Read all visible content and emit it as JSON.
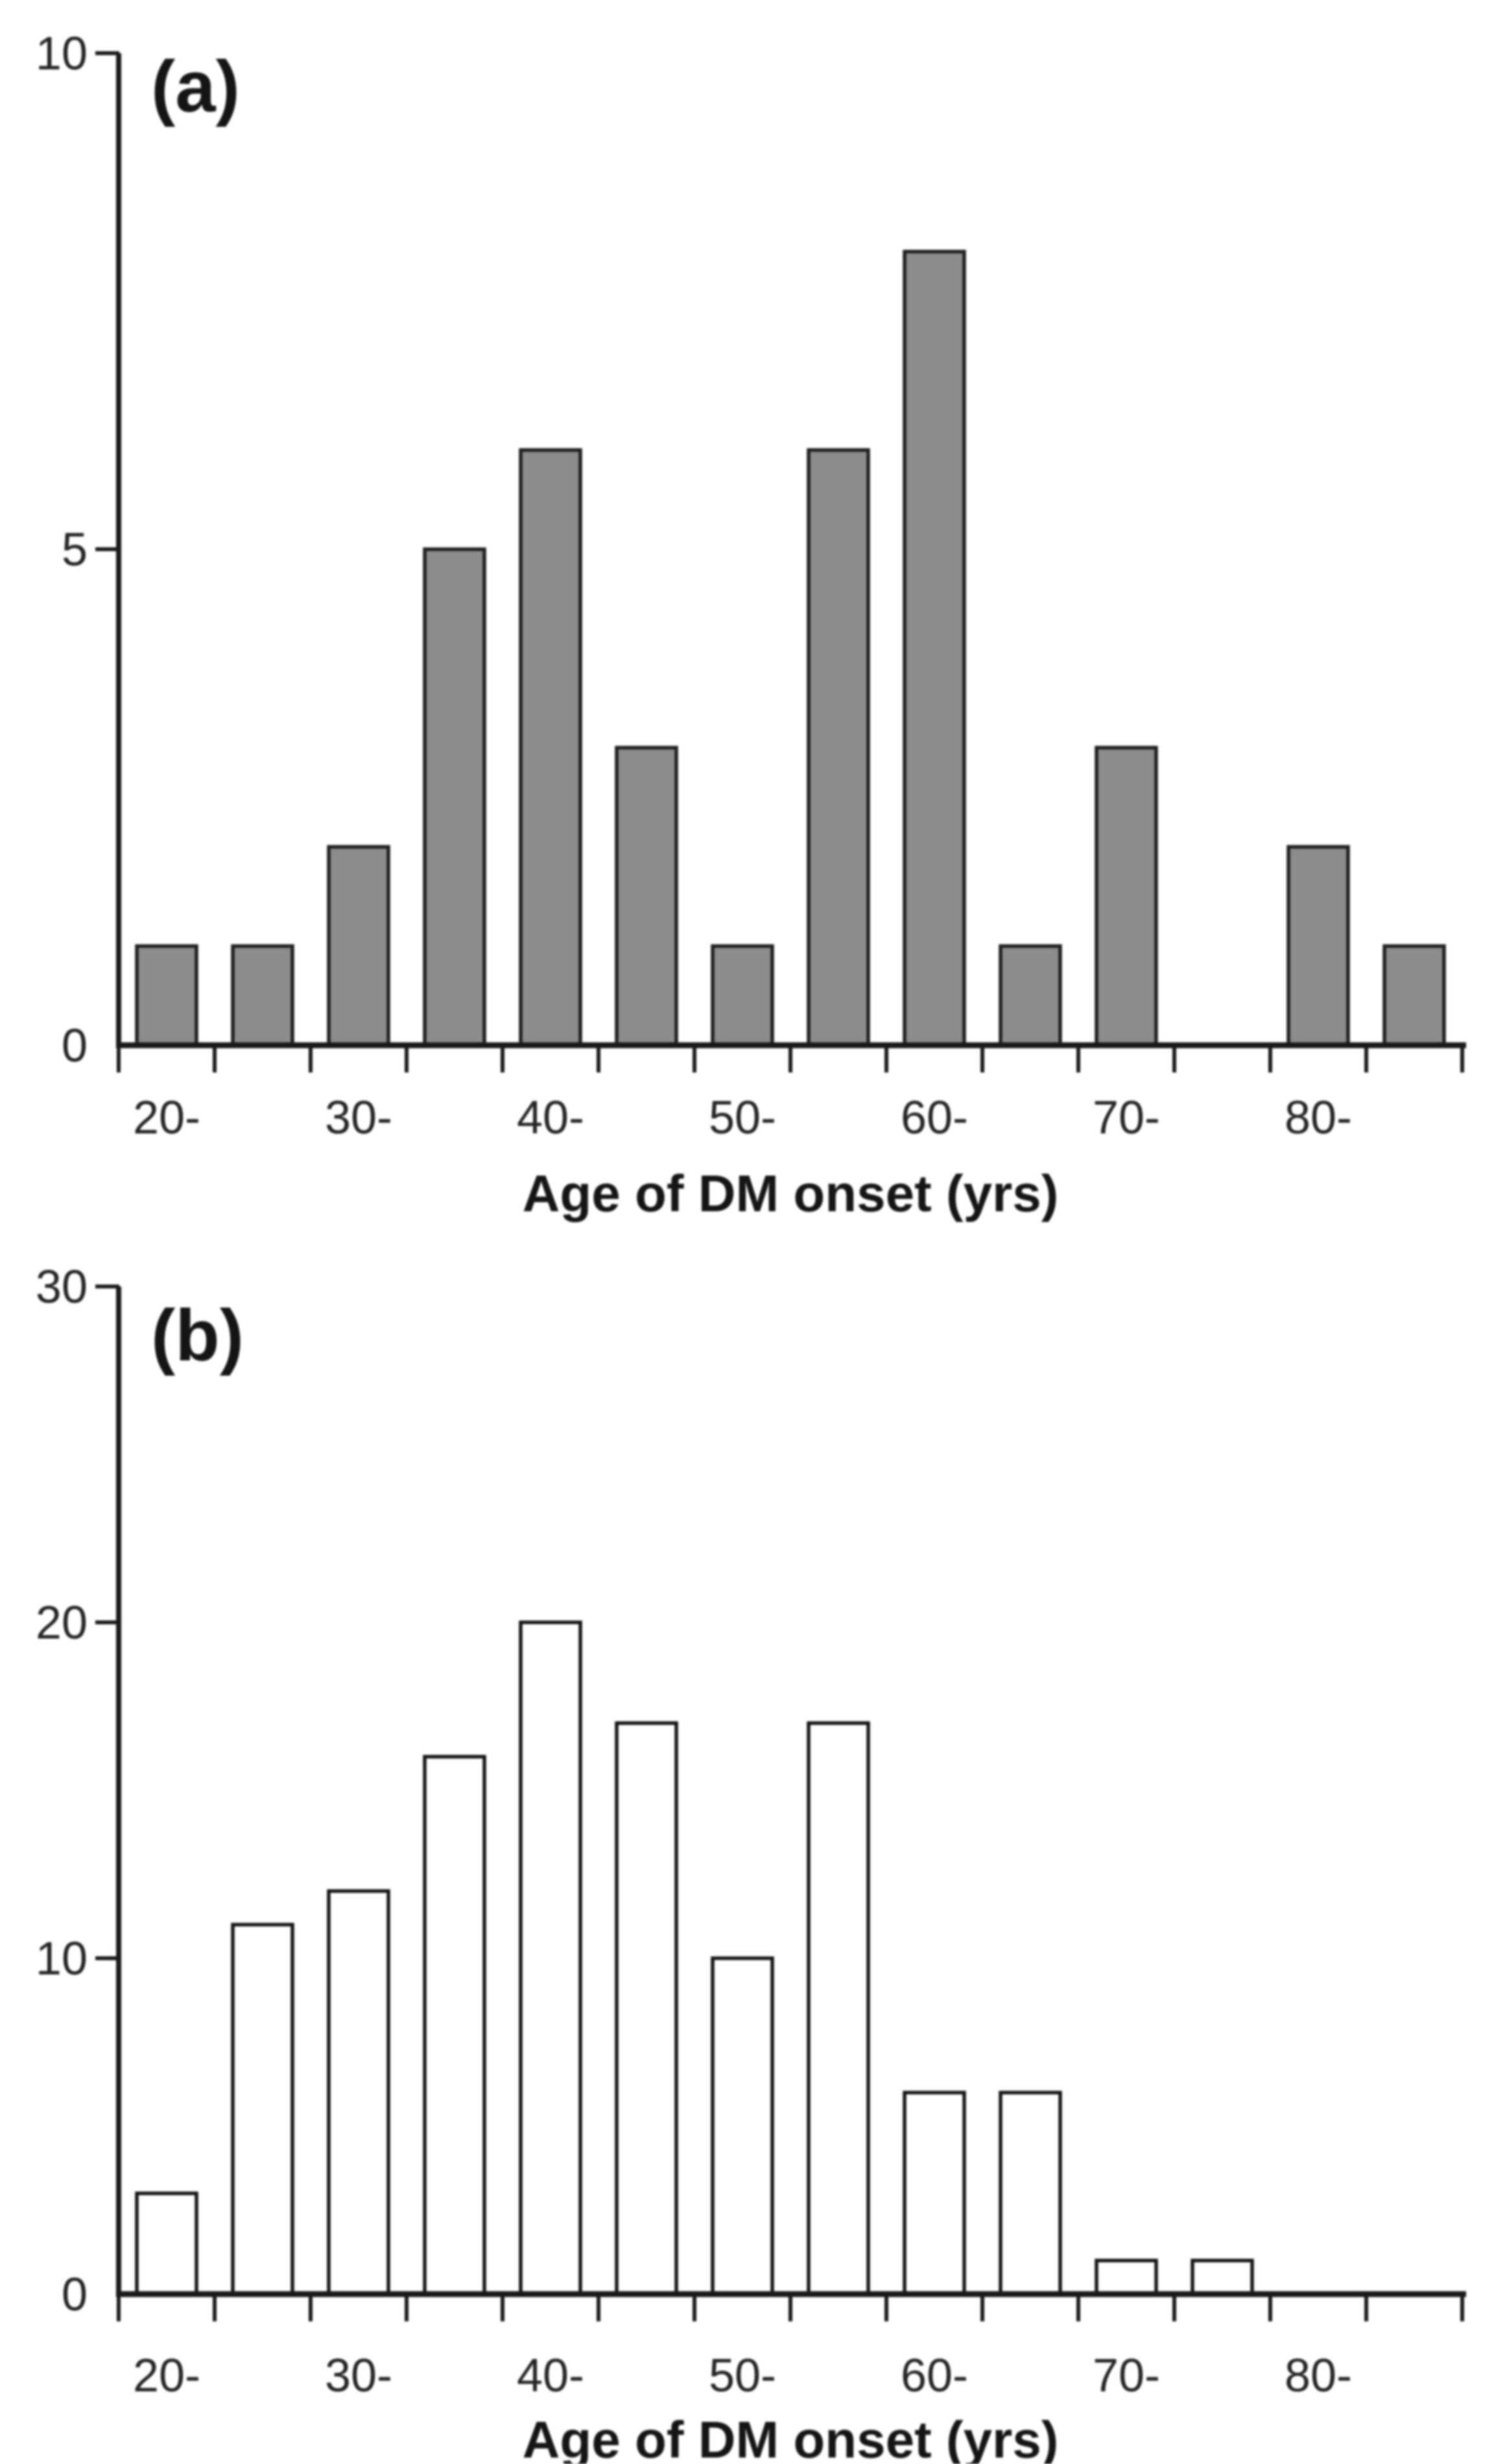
{
  "figure": {
    "background_color": "#ffffff",
    "axis_color": "#1a1a1a",
    "text_color": "#242424"
  },
  "chart_data": [
    {
      "type": "bar",
      "panel_label": "(a)",
      "xlabel": "Age of DM onset (yrs)",
      "ylabel": "",
      "bins_start_age": [
        20,
        25,
        30,
        35,
        40,
        45,
        50,
        55,
        60,
        65,
        70,
        75,
        80,
        85
      ],
      "bin_width_years": 5,
      "values": [
        1,
        1,
        2,
        5,
        6,
        3,
        1,
        6,
        8,
        1,
        3,
        0,
        2,
        1
      ],
      "x_tick_labels": [
        "20-",
        "30-",
        "40-",
        "50-",
        "60-",
        "70-",
        "80-"
      ],
      "x_tick_label_slots": [
        0,
        2,
        4,
        6,
        8,
        10,
        12
      ],
      "yticks": [
        0,
        5,
        10
      ],
      "ylim": [
        0,
        10
      ],
      "grid": false,
      "legend": "none",
      "bar_fill": "#8c8c8c",
      "bar_stroke": "#1f1f1f"
    },
    {
      "type": "bar",
      "panel_label": "(b)",
      "xlabel": "Age of DM onset (yrs)",
      "ylabel": "",
      "bins_start_age": [
        20,
        25,
        30,
        35,
        40,
        45,
        50,
        55,
        60,
        65,
        70,
        75,
        80,
        85
      ],
      "bin_width_years": 5,
      "values": [
        3,
        11,
        12,
        16,
        20,
        17,
        10,
        17,
        6,
        6,
        1,
        1,
        0,
        0
      ],
      "x_tick_labels": [
        "20-",
        "30-",
        "40-",
        "50-",
        "60-",
        "70-",
        "80-"
      ],
      "x_tick_label_slots": [
        0,
        2,
        4,
        6,
        8,
        10,
        12
      ],
      "yticks": [
        0,
        10,
        20,
        30
      ],
      "ylim": [
        0,
        30
      ],
      "grid": false,
      "legend": "none",
      "bar_fill": "#ffffff",
      "bar_stroke": "#151515"
    }
  ]
}
